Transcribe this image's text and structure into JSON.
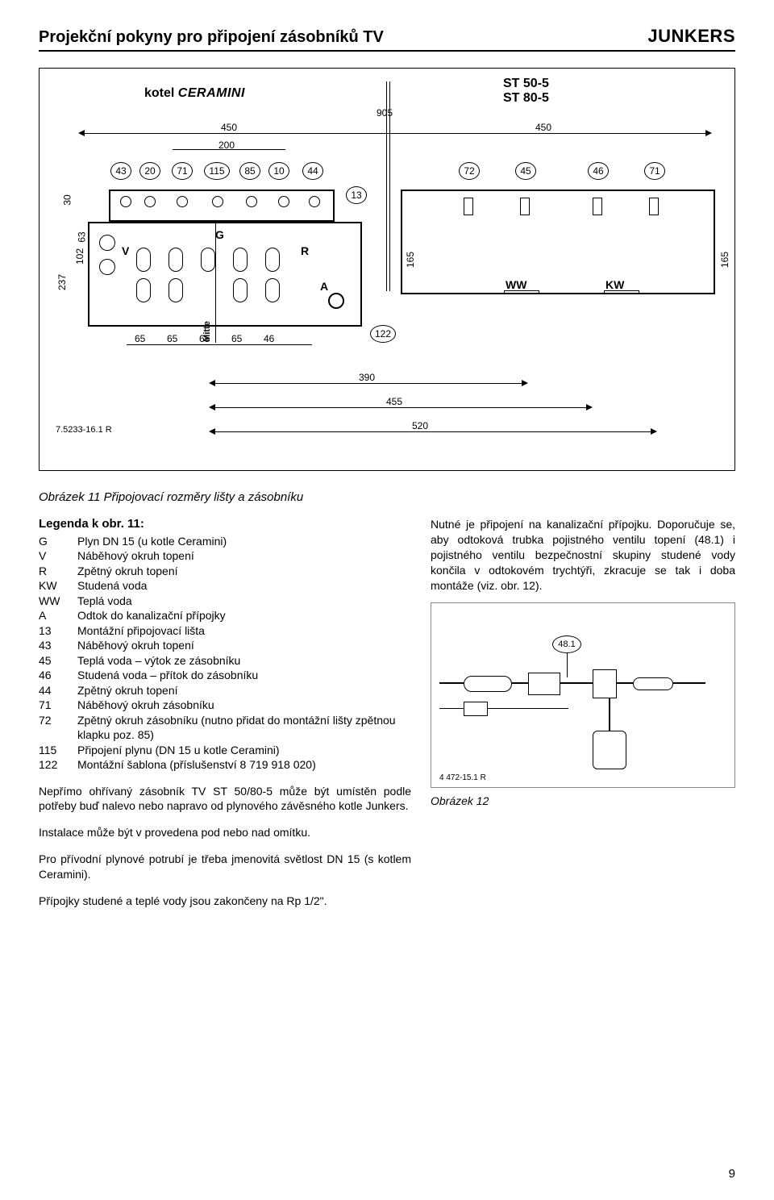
{
  "header": {
    "title": "Projekční pokyny pro připojení zásobníků TV",
    "brand": "JUNKERS"
  },
  "diagram": {
    "kotel_label": "kotel",
    "ceramini_label": "CERAMINI",
    "tank_line1": "ST 50-5",
    "tank_line2": "ST 80-5",
    "dim_905": "905",
    "dim_450a": "450",
    "dim_450b": "450",
    "dim_200": "200",
    "dim_390": "390",
    "dim_455": "455",
    "dim_520": "520",
    "dim_30": "30",
    "dim_63": "63",
    "dim_102": "102",
    "dim_237": "237",
    "dim_165a": "165",
    "dim_165b": "165",
    "dim_65a": "65",
    "dim_65b": "65",
    "dim_65c": "65",
    "dim_65d": "65",
    "dim_46": "46",
    "b43": "43",
    "b20": "20",
    "b71a": "71",
    "b115": "115",
    "b85": "85",
    "b10": "10",
    "b44": "44",
    "b13": "13",
    "b72": "72",
    "b45": "45",
    "b46": "46",
    "b71b": "71",
    "b122": "122",
    "label_V": "V",
    "label_G": "G",
    "label_R": "R",
    "label_A": "A",
    "label_WW": "WW",
    "label_KW": "KW",
    "label_Mitte": "Mitte",
    "ref": "7.5233-16.1 R",
    "b48_1": "48.1",
    "fig12_ref": "4 472-15.1 R"
  },
  "caption11": "Obrázek 11 Připojovací rozměry lišty a zásobníku",
  "legendTitle": "Legenda k obr. 11:",
  "legend": [
    {
      "k": "G",
      "v": "Plyn DN 15 (u kotle Ceramini)"
    },
    {
      "k": "V",
      "v": "Náběhový okruh topení"
    },
    {
      "k": "R",
      "v": "Zpětný okruh topení"
    },
    {
      "k": "KW",
      "v": "Studená voda"
    },
    {
      "k": "WW",
      "v": "Teplá voda"
    },
    {
      "k": "A",
      "v": "Odtok do kanalizační přípojky"
    },
    {
      "k": "13",
      "v": "Montážní připojovací lišta"
    },
    {
      "k": "43",
      "v": "Náběhový okruh topení"
    },
    {
      "k": "45",
      "v": "Teplá voda – výtok ze zásobníku"
    },
    {
      "k": "46",
      "v": "Studená voda – přítok do zásobníku"
    },
    {
      "k": "44",
      "v": "Zpětný okruh topení"
    },
    {
      "k": "71",
      "v": "Náběhový okruh zásobníku"
    },
    {
      "k": "72",
      "v": "Zpětný okruh zásobníku (nutno přidat do montážní lišty zpětnou klapku poz. 85)"
    },
    {
      "k": "115",
      "v": "Připojení plynu (DN 15 u kotle Ceramini)"
    },
    {
      "k": "122",
      "v": "Montážní šablona (příslušenství 8 719 918 020)"
    }
  ],
  "para1": "Nepřímo ohřívaný zásobník TV ST 50/80-5 může být umístěn podle potřeby buď nalevo nebo napravo od plynového závěsného kotle Junkers.",
  "para2": "Instalace může být v provedena pod nebo nad omítku.",
  "para3": "Pro přívodní plynové potrubí je třeba jmenovitá světlost DN 15 (s kotlem Ceramini).",
  "para4": "Přípojky studené a teplé vody jsou zakončeny na Rp 1/2\".",
  "rightPara": "Nutné je připojení na kanalizační přípojku. Doporučuje se, aby odtoková trubka pojistného ventilu topení (48.1) i pojistného ventilu bezpečnostní skupiny studené vody končila v odtokovém trychtýři, zkracuje se tak i doba montáže (viz. obr. 12).",
  "caption12": "Obrázek 12",
  "pageNumber": "9"
}
